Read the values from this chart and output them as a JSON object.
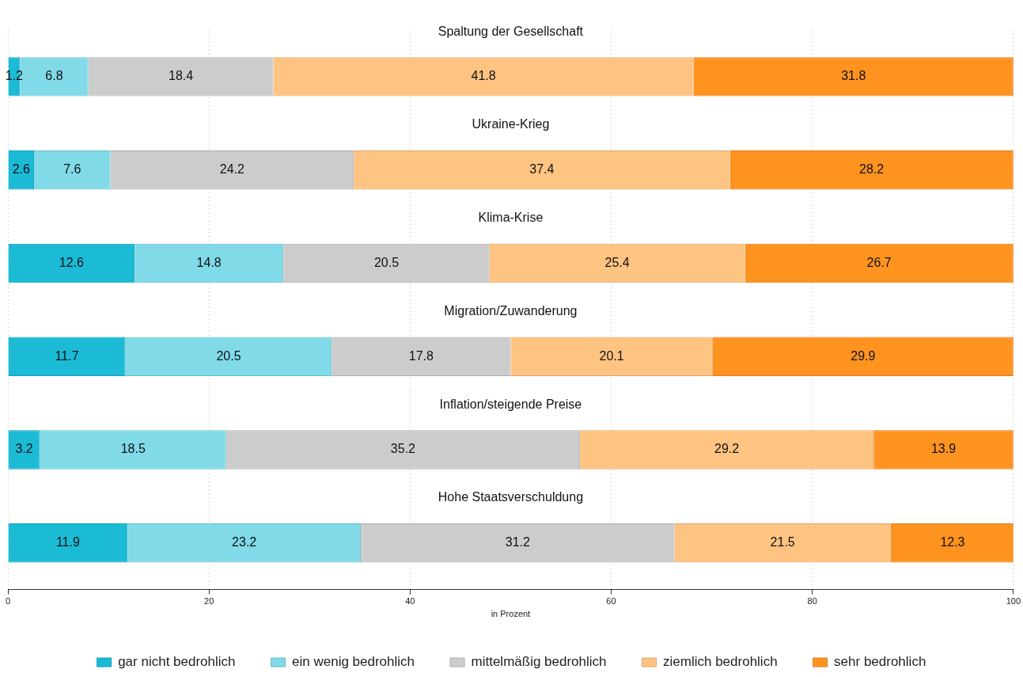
{
  "chart_data": {
    "type": "bar",
    "orientation": "horizontal",
    "stacked": true,
    "categories": [
      "Spaltung der Gesellschaft",
      "Ukraine-Krieg",
      "Klima-Krise",
      "Migration/Zuwanderung",
      "Inflation/steigende Preise",
      "Hohe Staatsverschuldung"
    ],
    "series": [
      {
        "name": "gar nicht bedrohlich",
        "color": "#1bbbd6",
        "values": [
          1.2,
          2.6,
          12.6,
          11.7,
          3.2,
          11.9
        ]
      },
      {
        "name": "ein wenig bedrohlich",
        "color": "#80dae8",
        "values": [
          6.8,
          7.6,
          14.8,
          20.5,
          18.5,
          23.2
        ]
      },
      {
        "name": "mittelmäßig bedrohlich",
        "color": "#cccccc",
        "values": [
          18.4,
          24.2,
          20.5,
          17.8,
          35.2,
          31.2
        ]
      },
      {
        "name": "ziemlich bedrohlich",
        "color": "#ffc382",
        "values": [
          41.8,
          37.4,
          25.4,
          20.1,
          29.2,
          21.5
        ]
      },
      {
        "name": "sehr bedrohlich",
        "color": "#ff9320",
        "values": [
          31.8,
          28.2,
          26.7,
          29.9,
          13.9,
          12.3
        ]
      }
    ],
    "xlabel": "in Prozent",
    "xlim": [
      0,
      100
    ],
    "xticks": [
      0,
      20,
      40,
      60,
      80,
      100
    ],
    "grid": "x",
    "legend": "bottom",
    "data_labels": true
  }
}
